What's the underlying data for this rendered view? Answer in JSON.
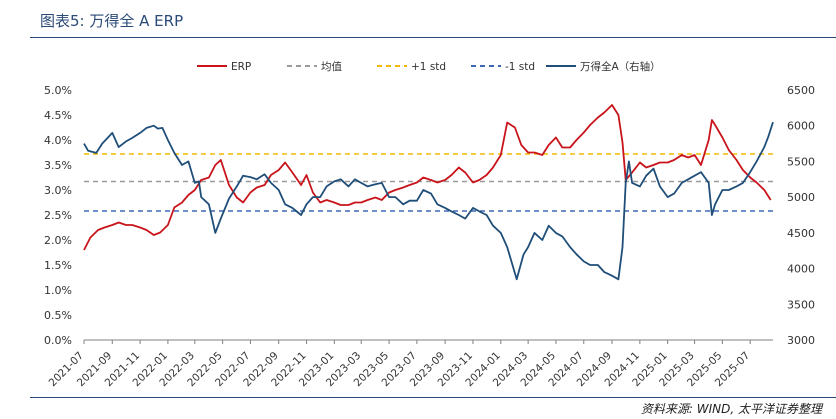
{
  "header": {
    "title": "图表5: 万得全 A ERP"
  },
  "footer": {
    "source": "资料来源: WIND, 太平洋证券整理"
  },
  "colors": {
    "accent": "#2a4a78",
    "erp": "#c8141a",
    "mean": "#9b9b9b",
    "plus1": "#f0b800",
    "minus1": "#3d68b4",
    "index": "#1f4e79"
  },
  "chart_data": {
    "type": "line",
    "legend": {
      "position": "top",
      "entries": [
        "ERP",
        "均值",
        "+1 std",
        "-1 std",
        "万得全A（右轴）"
      ]
    },
    "x_ticks": [
      "2021-07",
      "2021-09",
      "2021-11",
      "2022-01",
      "2022-03",
      "2022-05",
      "2022-07",
      "2022-09",
      "2022-11",
      "2023-01",
      "2023-03",
      "2023-05",
      "2023-07",
      "2023-09",
      "2023-11",
      "2024-01",
      "2024-03",
      "2024-05",
      "2024-07",
      "2024-09",
      "2024-11",
      "2025-01",
      "2025-03",
      "2025-05",
      "2025-07"
    ],
    "x_range": [
      "2021-07-01",
      "2025-08-20"
    ],
    "y_left": {
      "ticks": [
        "0.0%",
        "0.5%",
        "1.0%",
        "1.5%",
        "2.0%",
        "2.5%",
        "3.0%",
        "3.5%",
        "4.0%",
        "4.5%",
        "5.0%"
      ],
      "min": 0,
      "max": 5.0
    },
    "y_right": {
      "ticks": [
        "3000",
        "3500",
        "4000",
        "4500",
        "5000",
        "5500",
        "6000",
        "6500"
      ],
      "min": 3000,
      "max": 6500
    },
    "grid": false,
    "reference_lines": [
      {
        "name": "均值",
        "value": 3.17,
        "axis": "left"
      },
      {
        "name": "+1 std",
        "value": 3.72,
        "axis": "left"
      },
      {
        "name": "-1 std",
        "value": 2.58,
        "axis": "left"
      }
    ],
    "series": [
      {
        "name": "ERP",
        "axis": "left",
        "x": [
          "2021-07-01",
          "2021-07-15",
          "2021-08-01",
          "2021-08-15",
          "2021-09-01",
          "2021-09-15",
          "2021-10-01",
          "2021-10-15",
          "2021-11-01",
          "2021-11-15",
          "2021-12-01",
          "2021-12-15",
          "2022-01-01",
          "2022-01-15",
          "2022-02-01",
          "2022-02-15",
          "2022-03-01",
          "2022-03-15",
          "2022-04-01",
          "2022-04-15",
          "2022-04-27",
          "2022-05-15",
          "2022-06-01",
          "2022-06-15",
          "2022-07-01",
          "2022-07-15",
          "2022-08-01",
          "2022-08-15",
          "2022-09-01",
          "2022-09-15",
          "2022-10-01",
          "2022-10-20",
          "2022-11-01",
          "2022-11-15",
          "2022-12-01",
          "2022-12-15",
          "2023-01-01",
          "2023-01-15",
          "2023-02-01",
          "2023-02-15",
          "2023-03-01",
          "2023-03-15",
          "2023-04-01",
          "2023-04-15",
          "2023-05-01",
          "2023-05-15",
          "2023-06-01",
          "2023-06-15",
          "2023-07-01",
          "2023-07-15",
          "2023-08-01",
          "2023-08-15",
          "2023-09-01",
          "2023-09-15",
          "2023-10-01",
          "2023-10-15",
          "2023-11-01",
          "2023-11-15",
          "2023-12-01",
          "2023-12-15",
          "2024-01-01",
          "2024-01-15",
          "2024-02-01",
          "2024-02-15",
          "2024-03-01",
          "2024-03-15",
          "2024-04-01",
          "2024-04-15",
          "2024-05-01",
          "2024-05-15",
          "2024-06-01",
          "2024-06-15",
          "2024-07-01",
          "2024-07-15",
          "2024-08-01",
          "2024-08-15",
          "2024-09-01",
          "2024-09-15",
          "2024-09-24",
          "2024-10-01",
          "2024-10-15",
          "2024-11-01",
          "2024-11-15",
          "2024-12-01",
          "2024-12-15",
          "2025-01-01",
          "2025-01-15",
          "2025-02-01",
          "2025-02-15",
          "2025-03-01",
          "2025-03-15",
          "2025-04-01",
          "2025-04-08",
          "2025-04-15",
          "2025-05-01",
          "2025-05-15",
          "2025-06-01",
          "2025-06-15",
          "2025-07-01",
          "2025-07-15",
          "2025-08-01",
          "2025-08-15"
        ],
        "values": [
          1.8,
          2.05,
          2.2,
          2.25,
          2.3,
          2.35,
          2.3,
          2.3,
          2.25,
          2.2,
          2.1,
          2.15,
          2.3,
          2.65,
          2.75,
          2.9,
          3.0,
          3.2,
          3.25,
          3.5,
          3.6,
          3.1,
          2.85,
          2.75,
          2.95,
          3.05,
          3.1,
          3.3,
          3.4,
          3.55,
          3.35,
          3.1,
          3.3,
          2.95,
          2.75,
          2.8,
          2.75,
          2.7,
          2.7,
          2.75,
          2.75,
          2.8,
          2.85,
          2.8,
          2.95,
          3.0,
          3.05,
          3.1,
          3.15,
          3.25,
          3.2,
          3.15,
          3.2,
          3.3,
          3.45,
          3.35,
          3.15,
          3.2,
          3.3,
          3.45,
          3.7,
          4.35,
          4.25,
          3.9,
          3.75,
          3.75,
          3.7,
          3.9,
          4.05,
          3.85,
          3.85,
          4.0,
          4.15,
          4.3,
          4.45,
          4.55,
          4.7,
          4.5,
          3.95,
          3.2,
          3.35,
          3.55,
          3.45,
          3.5,
          3.55,
          3.55,
          3.6,
          3.7,
          3.65,
          3.7,
          3.5,
          4.0,
          4.4,
          4.3,
          4.05,
          3.8,
          3.6,
          3.4,
          3.25,
          3.15,
          3.0,
          2.8
        ]
      },
      {
        "name": "万得全A（右轴）",
        "axis": "right",
        "x": [
          "2021-07-01",
          "2021-07-10",
          "2021-07-28",
          "2021-08-10",
          "2021-09-01",
          "2021-09-15",
          "2021-10-01",
          "2021-10-15",
          "2021-11-01",
          "2021-11-15",
          "2021-12-01",
          "2021-12-10",
          "2021-12-20",
          "2022-01-01",
          "2022-01-15",
          "2022-02-01",
          "2022-02-15",
          "2022-03-01",
          "2022-03-10",
          "2022-03-15",
          "2022-04-01",
          "2022-04-15",
          "2022-04-27",
          "2022-05-15",
          "2022-06-01",
          "2022-06-15",
          "2022-07-01",
          "2022-07-15",
          "2022-08-01",
          "2022-08-15",
          "2022-09-01",
          "2022-09-15",
          "2022-10-01",
          "2022-10-20",
          "2022-11-01",
          "2022-11-15",
          "2022-12-01",
          "2022-12-15",
          "2023-01-01",
          "2023-01-15",
          "2023-02-01",
          "2023-02-15",
          "2023-03-01",
          "2023-03-15",
          "2023-04-01",
          "2023-04-15",
          "2023-05-01",
          "2023-05-15",
          "2023-06-01",
          "2023-06-15",
          "2023-07-01",
          "2023-07-15",
          "2023-08-01",
          "2023-08-15",
          "2023-09-01",
          "2023-09-15",
          "2023-10-01",
          "2023-10-15",
          "2023-11-01",
          "2023-11-15",
          "2023-12-01",
          "2023-12-15",
          "2024-01-01",
          "2024-01-15",
          "2024-02-05",
          "2024-02-20",
          "2024-03-01",
          "2024-03-15",
          "2024-04-01",
          "2024-04-15",
          "2024-05-01",
          "2024-05-15",
          "2024-06-01",
          "2024-06-15",
          "2024-07-01",
          "2024-07-15",
          "2024-08-01",
          "2024-08-15",
          "2024-09-01",
          "2024-09-15",
          "2024-09-24",
          "2024-10-01",
          "2024-10-08",
          "2024-10-15",
          "2024-11-01",
          "2024-11-15",
          "2024-12-01",
          "2024-12-15",
          "2025-01-01",
          "2025-01-15",
          "2025-02-01",
          "2025-02-15",
          "2025-03-01",
          "2025-03-15",
          "2025-04-01",
          "2025-04-08",
          "2025-04-15",
          "2025-05-01",
          "2025-05-15",
          "2025-06-01",
          "2025-06-15",
          "2025-07-01",
          "2025-07-15",
          "2025-08-01",
          "2025-08-10",
          "2025-08-20"
        ],
        "values": [
          5750,
          5650,
          5620,
          5750,
          5900,
          5700,
          5780,
          5830,
          5900,
          5970,
          6000,
          5960,
          5970,
          5800,
          5620,
          5450,
          5500,
          5200,
          5220,
          5000,
          4900,
          4500,
          4700,
          4980,
          5150,
          5300,
          5280,
          5250,
          5320,
          5200,
          5100,
          4900,
          4850,
          4750,
          4900,
          5000,
          5000,
          5150,
          5220,
          5250,
          5150,
          5250,
          5200,
          5150,
          5180,
          5200,
          5000,
          5000,
          4900,
          4950,
          4950,
          5100,
          5050,
          4900,
          4850,
          4800,
          4750,
          4700,
          4850,
          4800,
          4750,
          4600,
          4500,
          4300,
          3850,
          4200,
          4300,
          4500,
          4400,
          4600,
          4500,
          4450,
          4300,
          4200,
          4100,
          4050,
          4050,
          3950,
          3900,
          3850,
          4300,
          5200,
          5500,
          5200,
          5150,
          5300,
          5400,
          5150,
          5000,
          5050,
          5200,
          5250,
          5300,
          5350,
          5200,
          4750,
          4900,
          5100,
          5100,
          5150,
          5200,
          5350,
          5500,
          5700,
          5850,
          6050
        ]
      }
    ]
  }
}
